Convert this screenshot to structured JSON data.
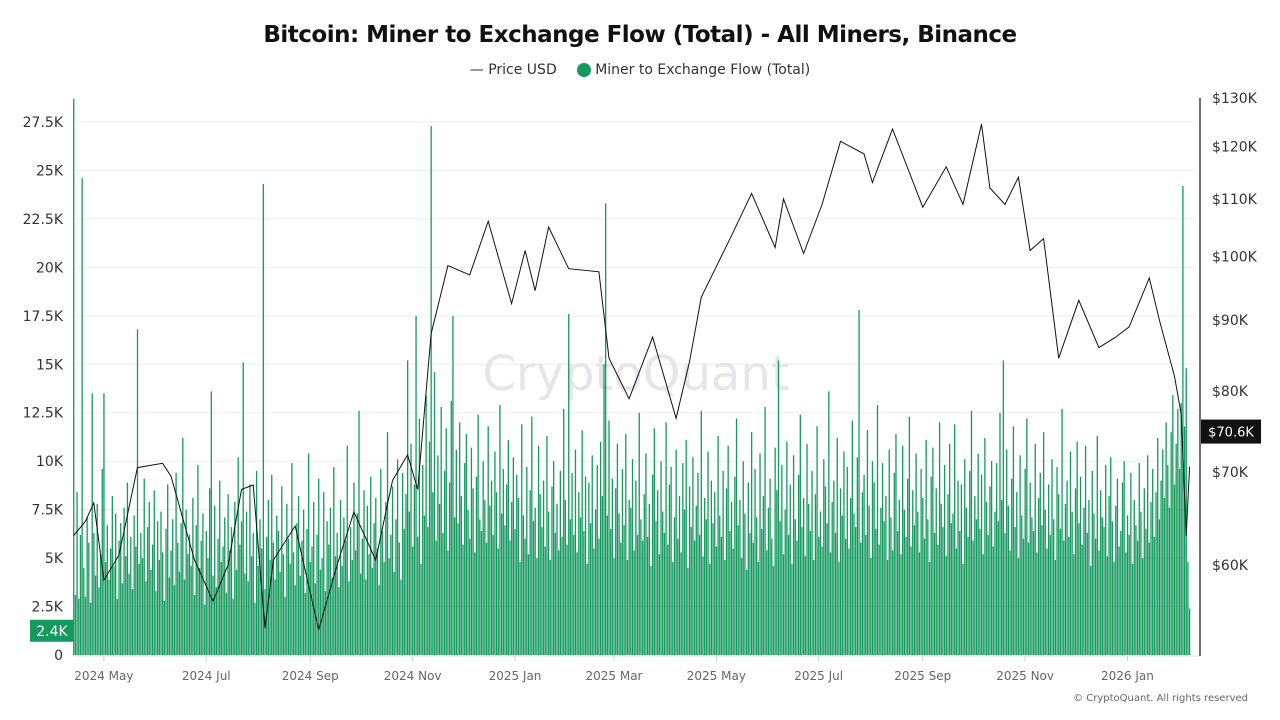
{
  "chart_data": {
    "type": "bar+line",
    "title": "Bitcoin: Miner to Exchange Flow (Total) - All Miners, Binance",
    "legend": {
      "placement": "top",
      "entries": [
        "Price USD",
        "Miner to Exchange Flow (Total)"
      ]
    },
    "watermark": "CryptoQuant",
    "footer": "© CryptoQuant. All rights reserved",
    "colors": {
      "flow": "#14995e",
      "price": "#111111",
      "grid": "#eeeeee",
      "price_badge": "#111111"
    },
    "grid": true,
    "x_axis": {
      "type": "date",
      "ticks": [
        "2024 May",
        "2024 Jul",
        "2024 Sep",
        "2024 Nov",
        "2025 Jan",
        "2025 Mar",
        "2025 May",
        "2025 Jul",
        "2025 Sep",
        "2025 Nov",
        "2026 Jan"
      ],
      "tick_dates": [
        "2024-05-01",
        "2024-07-01",
        "2024-09-01",
        "2024-11-01",
        "2025-01-01",
        "2025-03-01",
        "2025-05-01",
        "2025-07-01",
        "2025-09-01",
        "2025-11-01",
        "2026-01-01"
      ]
    },
    "y_left": {
      "range": [
        0,
        28700
      ],
      "ticks": [
        "0",
        "2.5K",
        "5K",
        "7.5K",
        "10K",
        "12.5K",
        "15K",
        "17.5K",
        "20K",
        "22.5K",
        "25K",
        "27.5K"
      ],
      "tick_values": [
        0,
        2500,
        5000,
        7500,
        10000,
        12500,
        15000,
        17500,
        20000,
        22500,
        25000,
        27500
      ]
    },
    "y_right": {
      "scale": "log",
      "range": [
        51700,
        130000
      ],
      "ticks": [
        "$60K",
        "$70K",
        "$80K",
        "$90K",
        "$100K",
        "$110K",
        "$120K",
        "$130K"
      ],
      "tick_values": [
        60000,
        70000,
        80000,
        90000,
        100000,
        110000,
        120000,
        130000
      ]
    },
    "last_flow_label": "2.4K",
    "last_price_label": "$70.6K",
    "flow_series": {
      "name": "Miner to Exchange Flow (Total)",
      "start_date": "2024-04-13",
      "unit": "K",
      "values": [
        28.7,
        3.1,
        8.4,
        2.9,
        6.2,
        24.6,
        4.5,
        3.0,
        7.1,
        5.8,
        2.7,
        13.5,
        6.3,
        4.1,
        7.8,
        3.5,
        5.2,
        9.6,
        13.5,
        4.8,
        6.7,
        3.9,
        5.5,
        8.2,
        4.6,
        7.3,
        2.9,
        5.9,
        6.8,
        3.7,
        7.6,
        5.1,
        8.9,
        4.2,
        6.1,
        3.4,
        7.2,
        5.6,
        16.8,
        4.7,
        6.3,
        5.0,
        9.1,
        3.8,
        6.6,
        7.9,
        4.4,
        5.7,
        8.5,
        3.3,
        6.9,
        4.9,
        7.4,
        5.3,
        2.8,
        6.5,
        8.8,
        4.0,
        5.4,
        7.0,
        3.6,
        9.4,
        5.8,
        4.3,
        6.8,
        11.2,
        3.9,
        7.5,
        5.2,
        6.2,
        4.6,
        8.1,
        3.1,
        6.7,
        9.8,
        4.5,
        5.9,
        7.3,
        2.6,
        6.4,
        5.0,
        8.6,
        13.6,
        4.1,
        7.7,
        3.5,
        6.0,
        9.0,
        4.8,
        5.6,
        7.1,
        3.2,
        8.3,
        5.4,
        6.6,
        2.9,
        7.9,
        4.4,
        10.2,
        5.7,
        6.9,
        15.1,
        4.2,
        7.4,
        3.8,
        8.8,
        5.1,
        6.3,
        2.7,
        9.5,
        4.6,
        7.0,
        5.5,
        24.3,
        3.4,
        6.1,
        8.0,
        4.9,
        9.3,
        5.8,
        3.9,
        7.2,
        6.4,
        4.3,
        8.7,
        5.2,
        3.0,
        7.8,
        6.0,
        4.7,
        9.9,
        5.3,
        3.6,
        6.8,
        8.2,
        4.1,
        5.9,
        7.5,
        3.2,
        6.5,
        10.4,
        4.8,
        5.6,
        7.9,
        3.7,
        6.2,
        9.1,
        4.4,
        5.0,
        8.4,
        3.3,
        6.9,
        5.7,
        7.6,
        4.0,
        9.7,
        5.1,
        6.3,
        3.5,
        8.0,
        4.6,
        7.1,
        5.9,
        10.8,
        3.8,
        6.6,
        4.9,
        8.9,
        5.4,
        7.3,
        12.6,
        4.2,
        6.0,
        8.5,
        3.9,
        7.7,
        5.2,
        9.2,
        4.5,
        6.8,
        8.1,
        5.5,
        3.6,
        9.6,
        6.4,
        4.8,
        7.9,
        11.5,
        5.0,
        6.2,
        8.7,
        4.3,
        7.0,
        10.1,
        5.8,
        3.9,
        9.4,
        6.5,
        8.3,
        15.2,
        7.4,
        10.9,
        5.6,
        8.8,
        17.5,
        6.1,
        12.2,
        4.7,
        9.8,
        7.2,
        13.4,
        6.6,
        11.0,
        27.3,
        8.4,
        14.6,
        5.9,
        10.3,
        7.8,
        12.8,
        6.3,
        9.5,
        11.7,
        5.4,
        8.9,
        13.1,
        17.5,
        7.1,
        10.6,
        6.8,
        12.0,
        8.2,
        5.7,
        9.9,
        11.4,
        7.5,
        6.0,
        10.7,
        8.6,
        5.3,
        9.2,
        12.4,
        7.0,
        6.4,
        10.0,
        8.0,
        5.8,
        11.8,
        7.7,
        9.0,
        6.2,
        10.5,
        8.4,
        5.5,
        12.9,
        7.3,
        9.6,
        6.7,
        8.8,
        11.1,
        5.9,
        7.9,
        10.2,
        6.5,
        9.3,
        8.1,
        4.8,
        11.9,
        7.2,
        6.0,
        9.7,
        5.2,
        8.5,
        12.3,
        6.9,
        7.6,
        5.0,
        10.8,
        8.3,
        6.6,
        9.0,
        5.6,
        11.3,
        7.4,
        4.9,
        8.7,
        10.0,
        6.3,
        7.8,
        5.4,
        9.5,
        6.1,
        12.7,
        8.0,
        5.7,
        17.6,
        7.0,
        9.4,
        6.2,
        10.6,
        5.3,
        8.4,
        7.1,
        11.6,
        6.4,
        9.2,
        4.7,
        8.9,
        6.8,
        10.3,
        5.5,
        7.5,
        9.8,
        6.0,
        11.0,
        8.2,
        15.0,
        23.3,
        7.2,
        12.1,
        6.5,
        9.1,
        5.0,
        8.6,
        10.9,
        7.3,
        5.8,
        9.6,
        6.7,
        11.4,
        4.9,
        8.0,
        7.6,
        10.1,
        5.4,
        9.0,
        6.2,
        12.5,
        7.0,
        5.9,
        8.3,
        10.4,
        6.1,
        7.8,
        4.6,
        9.3,
        11.7,
        6.9,
        8.5,
        5.2,
        10.0,
        7.4,
        6.3,
        12.0,
        5.7,
        8.8,
        9.7,
        4.8,
        7.1,
        10.6,
        6.0,
        8.2,
        5.3,
        9.9,
        7.5,
        11.1,
        4.5,
        8.7,
        6.6,
        10.2,
        5.9,
        7.7,
        9.4,
        6.2,
        12.6,
        5.1,
        8.1,
        7.0,
        10.5,
        4.7,
        9.0,
        6.8,
        8.4,
        5.6,
        11.3,
        7.2,
        6.1,
        9.5,
        4.9,
        8.6,
        10.8,
        6.4,
        7.9,
        5.5,
        9.2,
        12.2,
        6.7,
        8.0,
        5.0,
        10.0,
        7.3,
        4.4,
        8.9,
        6.3,
        11.5,
        5.8,
        9.6,
        7.1,
        4.8,
        10.4,
        6.5,
        8.2,
        12.8,
        5.4,
        7.6,
        9.1,
        6.0,
        4.6,
        10.7,
        8.5,
        15.2,
        6.9,
        9.8,
        5.2,
        7.5,
        11.0,
        6.2,
        8.8,
        4.7,
        10.3,
        7.0,
        5.9,
        9.3,
        12.4,
        6.6,
        8.1,
        5.1,
        10.9,
        7.8,
        6.4,
        9.5,
        4.9,
        8.3,
        11.8,
        6.1,
        7.4,
        5.6,
        10.1,
        8.7,
        6.8,
        13.6,
        5.3,
        7.9,
        9.0,
        6.3,
        11.2,
        4.8,
        8.6,
        7.2,
        10.5,
        6.0,
        9.7,
        5.5,
        8.1,
        12.1,
        7.3,
        6.6,
        10.2,
        17.8,
        5.8,
        8.4,
        9.3,
        6.2,
        11.6,
        7.7,
        5.0,
        10.0,
        8.9,
        6.5,
        12.9,
        5.7,
        7.6,
        9.9,
        6.9,
        8.2,
        4.9,
        10.6,
        7.1,
        5.4,
        9.4,
        11.4,
        6.4,
        8.0,
        5.2,
        10.8,
        7.5,
        6.1,
        9.1,
        12.3,
        5.6,
        8.5,
        6.7,
        10.4,
        7.4,
        5.3,
        9.6,
        8.1,
        6.0,
        11.1,
        7.0,
        4.8,
        9.2,
        10.7,
        6.3,
        8.6,
        5.7,
        12.0,
        7.8,
        6.6,
        9.8,
        5.1,
        8.3,
        10.9,
        6.8,
        7.3,
        11.9,
        5.5,
        9.0,
        6.4,
        8.8,
        4.7,
        10.1,
        7.6,
        6.1,
        9.5,
        12.6,
        5.9,
        8.2,
        7.0,
        10.4,
        6.5,
        9.3,
        5.2,
        11.2,
        7.9,
        6.2,
        8.7,
        10.0,
        5.6,
        7.4,
        9.9,
        6.9,
        12.5,
        8.0,
        15.2,
        6.3,
        10.6,
        7.7,
        5.4,
        9.1,
        11.8,
        6.6,
        8.4,
        5.0,
        10.3,
        7.2,
        6.0,
        9.6,
        12.2,
        5.8,
        8.9,
        7.1,
        6.4,
        10.9,
        5.3,
        8.1,
        9.4,
        6.7,
        11.5,
        7.5,
        5.5,
        8.8,
        6.2,
        10.1,
        7.0,
        4.9,
        9.7,
        8.3,
        6.5,
        12.7,
        5.9,
        7.8,
        9.0,
        6.1,
        10.5,
        7.4,
        5.2,
        8.6,
        11.0,
        6.8,
        9.2,
        5.7,
        7.6,
        10.8,
        6.3,
        8.0,
        4.6,
        9.5,
        7.3,
        6.0,
        11.3,
        5.4,
        8.5,
        7.1,
        6.6,
        9.8,
        5.1,
        8.2,
        10.2,
        6.9,
        4.8,
        7.7,
        9.1,
        5.6,
        6.4,
        8.9,
        10.0,
        5.3,
        7.2,
        6.2,
        9.4,
        4.7,
        8.0,
        6.7,
        5.9,
        9.9,
        7.4,
        5.0,
        8.6,
        6.5,
        10.3,
        5.8,
        7.9,
        9.6,
        6.1,
        8.4,
        11.2,
        7.0,
        9.0,
        10.6,
        8.1,
        12.0,
        9.8,
        7.6,
        11.5,
        13.4,
        8.8,
        10.9,
        12.7,
        9.6,
        13.0,
        24.2,
        11.8,
        14.8,
        4.8,
        2.4
      ]
    },
    "price_series": {
      "name": "Price USD",
      "unit": "K USD",
      "points": [
        [
          "2024-04-13",
          63.0
        ],
        [
          "2024-04-20",
          64.5
        ],
        [
          "2024-04-25",
          66.5
        ],
        [
          "2024-05-01",
          58.5
        ],
        [
          "2024-05-10",
          61.0
        ],
        [
          "2024-05-21",
          70.5
        ],
        [
          "2024-06-05",
          71.0
        ],
        [
          "2024-06-10",
          69.5
        ],
        [
          "2024-06-24",
          60.5
        ],
        [
          "2024-07-05",
          56.5
        ],
        [
          "2024-07-14",
          60.0
        ],
        [
          "2024-07-22",
          68.0
        ],
        [
          "2024-07-29",
          68.5
        ],
        [
          "2024-08-05",
          54.0
        ],
        [
          "2024-08-10",
          60.5
        ],
        [
          "2024-08-23",
          64.0
        ],
        [
          "2024-09-06",
          53.9
        ],
        [
          "2024-09-17",
          60.0
        ],
        [
          "2024-09-27",
          65.5
        ],
        [
          "2024-10-10",
          60.5
        ],
        [
          "2024-10-20",
          69.0
        ],
        [
          "2024-10-29",
          72.0
        ],
        [
          "2024-11-04",
          68.0
        ],
        [
          "2024-11-12",
          88.0
        ],
        [
          "2024-11-22",
          98.5
        ],
        [
          "2024-12-05",
          97.0
        ],
        [
          "2024-12-16",
          106.0
        ],
        [
          "2024-12-30",
          92.5
        ],
        [
          "2025-01-07",
          101.0
        ],
        [
          "2025-01-13",
          94.5
        ],
        [
          "2025-01-21",
          105.0
        ],
        [
          "2025-02-02",
          98.0
        ],
        [
          "2025-02-20",
          97.5
        ],
        [
          "2025-02-26",
          84.5
        ],
        [
          "2025-03-10",
          79.0
        ],
        [
          "2025-03-24",
          87.5
        ],
        [
          "2025-04-07",
          76.5
        ],
        [
          "2025-04-15",
          84.0
        ],
        [
          "2025-04-22",
          93.5
        ],
        [
          "2025-05-10",
          103.5
        ],
        [
          "2025-05-22",
          111.0
        ],
        [
          "2025-06-05",
          101.5
        ],
        [
          "2025-06-10",
          110.0
        ],
        [
          "2025-06-22",
          100.5
        ],
        [
          "2025-07-03",
          109.0
        ],
        [
          "2025-07-14",
          121.0
        ],
        [
          "2025-07-28",
          118.5
        ],
        [
          "2025-08-02",
          113.0
        ],
        [
          "2025-08-14",
          123.5
        ],
        [
          "2025-09-01",
          108.5
        ],
        [
          "2025-09-15",
          116.0
        ],
        [
          "2025-09-25",
          109.0
        ],
        [
          "2025-10-06",
          124.5
        ],
        [
          "2025-10-11",
          112.0
        ],
        [
          "2025-10-20",
          109.0
        ],
        [
          "2025-10-28",
          114.0
        ],
        [
          "2025-11-04",
          101.0
        ],
        [
          "2025-11-12",
          103.0
        ],
        [
          "2025-11-21",
          84.5
        ],
        [
          "2025-12-03",
          93.0
        ],
        [
          "2025-12-15",
          86.0
        ],
        [
          "2025-12-25",
          87.5
        ],
        [
          "2026-01-02",
          89.0
        ],
        [
          "2026-01-14",
          96.5
        ],
        [
          "2026-01-20",
          90.0
        ],
        [
          "2026-01-29",
          82.0
        ],
        [
          "2026-02-02",
          77.0
        ],
        [
          "2026-02-05",
          63.0
        ],
        [
          "2026-02-07",
          70.6
        ]
      ]
    }
  }
}
